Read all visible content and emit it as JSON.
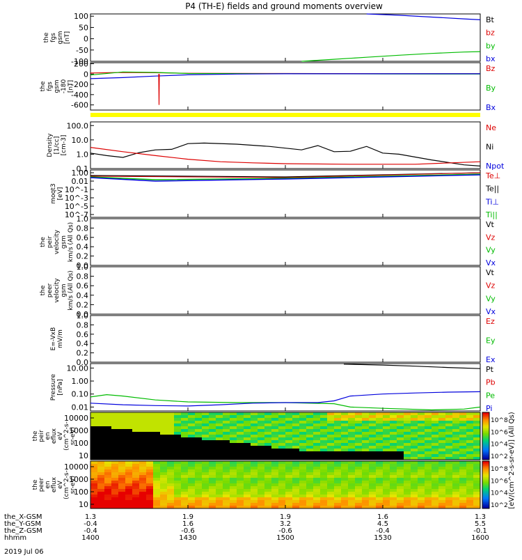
{
  "chart_data": {
    "type": "line",
    "title": "P4 (TH-E) fields and ground moments overview",
    "date": "2019 Jul 06",
    "time_ticks": [
      "1400",
      "1430",
      "1500",
      "1530",
      "1600"
    ],
    "time_minutes": [
      0,
      30,
      60,
      90,
      120
    ],
    "orbit_rows": [
      {
        "label": "the_X-GSM",
        "values": [
          "1.3",
          "1.9",
          "1.9",
          "1.6",
          "1.3"
        ]
      },
      {
        "label": "the_Y-GSM",
        "values": [
          "-0.4",
          "1.6",
          "3.2",
          "4.5",
          "5.5"
        ]
      },
      {
        "label": "the_Z-GSM",
        "values": [
          "-0.4",
          "-0.6",
          "-0.6",
          "-0.4",
          "-0.1"
        ]
      },
      {
        "label": "hhmm",
        "values": [
          "1400",
          "1430",
          "1500",
          "1530",
          "1600"
        ]
      }
    ],
    "panels": [
      {
        "key": "fgs",
        "ylabel": [
          "the",
          "fgs",
          "gsm",
          "[nT]"
        ],
        "yticks": [
          "100",
          "50",
          "0",
          "-50",
          "-100"
        ],
        "ytick_values": [
          100,
          50,
          0,
          -50,
          -100
        ],
        "ylim": [
          -100,
          110
        ],
        "scale": "linear",
        "legend": [
          {
            "name": "Bt",
            "color": "#000000"
          },
          {
            "name": "bz",
            "color": "#dd0000"
          },
          {
            "name": "by",
            "color": "#00bb00"
          },
          {
            "name": "bx",
            "color": "#0000dd"
          }
        ],
        "series": [
          {
            "name": "bx",
            "color": "#0000dd",
            "t": [
              85,
              95,
              105,
              115,
              120
            ],
            "v": [
              110,
              104,
              96,
              88,
              84
            ]
          },
          {
            "name": "by",
            "color": "#00bb00",
            "t": [
              65,
              75,
              85,
              95,
              105,
              115,
              120
            ],
            "v": [
              -100,
              -91,
              -82,
              -73,
              -65,
              -59,
              -57
            ]
          }
        ]
      },
      {
        "key": "fgs_dc",
        "ylabel": [
          "the",
          "fgs",
          "gsm",
          "-180",
          "[nT]"
        ],
        "yticks": [
          "200",
          "0",
          "-200",
          "-400",
          "-600"
        ],
        "ytick_values": [
          200,
          0,
          -200,
          -400,
          -600
        ],
        "ylim": [
          -700,
          220
        ],
        "scale": "linear",
        "legend": [
          {
            "name": "Bz",
            "color": "#dd0000"
          },
          {
            "name": "By",
            "color": "#00bb00"
          },
          {
            "name": "Bx",
            "color": "#0000dd"
          }
        ],
        "series": [
          {
            "name": "Bz",
            "color": "#dd0000",
            "t": [
              0,
              10,
              20,
              30,
              60,
              90,
              120
            ],
            "v": [
              20,
              30,
              25,
              15,
              10,
              5,
              5
            ]
          },
          {
            "name": "By",
            "color": "#00bb00",
            "t": [
              0,
              10,
              20,
              30,
              60,
              90,
              120
            ],
            "v": [
              -20,
              40,
              30,
              10,
              5,
              2,
              0
            ]
          },
          {
            "name": "Bx",
            "color": "#0000dd",
            "t": [
              0,
              10,
              20,
              30,
              45,
              60,
              120
            ],
            "v": [
              -90,
              -70,
              -40,
              -15,
              0,
              5,
              5
            ]
          },
          {
            "name": "spike",
            "color": "#dd0000",
            "t": [
              21,
              21.1,
              21.2
            ],
            "v": [
              0,
              -600,
              0
            ]
          }
        ]
      },
      {
        "key": "density",
        "ylabel": [
          "Density",
          "[1/cc]",
          "[cm-3]"
        ],
        "yticks": [
          "100.0",
          "10.0",
          "1.0",
          "0.1"
        ],
        "ytick_values": [
          100,
          10,
          1,
          0.1
        ],
        "ylim": [
          0.1,
          180
        ],
        "scale": "log",
        "legend": [
          {
            "name": "Ne",
            "color": "#dd0000"
          },
          {
            "name": "Ni",
            "color": "#000000"
          },
          {
            "name": "Npot",
            "color": "#0000dd"
          }
        ],
        "series": [
          {
            "name": "Ni",
            "color": "#000000",
            "t": [
              0,
              5,
              10,
              15,
              20,
              25,
              30,
              35,
              45,
              55,
              65,
              70,
              75,
              80,
              85,
              90,
              95,
              105,
              115,
              120
            ],
            "v": [
              1.2,
              0.8,
              0.6,
              1.3,
              2.0,
              2.2,
              5.5,
              6,
              5,
              3.5,
              2,
              4,
              1.5,
              1.6,
              3.5,
              1.2,
              1.0,
              0.4,
              0.18,
              0.15
            ]
          },
          {
            "name": "Ne",
            "color": "#dd0000",
            "t": [
              0,
              10,
              20,
              30,
              40,
              50,
              60,
              80,
              100,
              120
            ],
            "v": [
              3,
              1.5,
              0.8,
              0.45,
              0.3,
              0.25,
              0.22,
              0.2,
              0.2,
              0.3
            ]
          }
        ]
      },
      {
        "key": "temp",
        "ylabel": [
          "moqt3",
          "[eV]"
        ],
        "yticks": [
          "1.00",
          "0.01",
          "10^-1",
          "10^-3",
          "10^-5",
          "10^-7"
        ],
        "ytick_values": [],
        "ylim": [
          0,
          1
        ],
        "scale": "log",
        "legend": [
          {
            "name": "Te⊥",
            "color": "#dd0000"
          },
          {
            "name": "Te||",
            "color": "#000000"
          },
          {
            "name": "Ti⊥",
            "color": "#0000dd"
          },
          {
            "name": "Ti||",
            "color": "#00bb00"
          }
        ],
        "series": []
      },
      {
        "key": "peir_v",
        "ylabel": [
          "the",
          "peir",
          "velocity",
          "gsm",
          "km/s (All Qs)"
        ],
        "yticks": [
          "1.0",
          "0.8",
          "0.6",
          "0.4",
          "0.2",
          "0.0"
        ],
        "ytick_values": [
          1,
          0.8,
          0.6,
          0.4,
          0.2,
          0
        ],
        "ylim": [
          0,
          1
        ],
        "scale": "linear",
        "legend": [
          {
            "name": "Vt",
            "color": "#000000"
          },
          {
            "name": "Vz",
            "color": "#dd0000"
          },
          {
            "name": "Vy",
            "color": "#00bb00"
          },
          {
            "name": "Vx",
            "color": "#0000dd"
          }
        ],
        "series": []
      },
      {
        "key": "peer_v",
        "ylabel": [
          "the",
          "peer",
          "velocity",
          "gsm",
          "km/s (All Qs)"
        ],
        "yticks": [
          "1.0",
          "0.8",
          "0.6",
          "0.4",
          "0.2",
          "0.0"
        ],
        "ytick_values": [
          1,
          0.8,
          0.6,
          0.4,
          0.2,
          0
        ],
        "ylim": [
          0,
          1
        ],
        "scale": "linear",
        "legend": [
          {
            "name": "Vt",
            "color": "#000000"
          },
          {
            "name": "Vz",
            "color": "#dd0000"
          },
          {
            "name": "Vy",
            "color": "#00bb00"
          },
          {
            "name": "Vx",
            "color": "#0000dd"
          }
        ],
        "series": []
      },
      {
        "key": "efield",
        "ylabel": [
          "E=-VxB",
          "mV/m"
        ],
        "yticks": [
          "1.0",
          "0.8",
          "0.6",
          "0.4",
          "0.2",
          "0.0"
        ],
        "ytick_values": [
          1,
          0.8,
          0.6,
          0.4,
          0.2,
          0
        ],
        "ylim": [
          0,
          1
        ],
        "scale": "linear",
        "legend": [
          {
            "name": "Ez",
            "color": "#dd0000"
          },
          {
            "name": "Ey",
            "color": "#00bb00"
          },
          {
            "name": "Ex",
            "color": "#0000dd"
          }
        ],
        "series": []
      },
      {
        "key": "pressure",
        "ylabel": [
          "Pressure",
          "[nPa]"
        ],
        "yticks": [
          "10.00",
          "1.00",
          "0.10",
          "0.01"
        ],
        "ytick_values": [
          10,
          1,
          0.1,
          0.01
        ],
        "ylim": [
          0.005,
          22
        ],
        "scale": "log",
        "legend": [
          {
            "name": "Pt",
            "color": "#000000"
          },
          {
            "name": "Pb",
            "color": "#dd0000"
          },
          {
            "name": "Pe",
            "color": "#00bb00"
          },
          {
            "name": "Pi",
            "color": "#0000dd"
          }
        ],
        "series": [
          {
            "name": "Pt",
            "color": "#000000",
            "t": [
              78,
              90,
              100,
              110,
              120
            ],
            "v": [
              20,
              17,
              14,
              11,
              9
            ]
          },
          {
            "name": "Pe",
            "color": "#00bb00",
            "t": [
              0,
              5,
              10,
              20,
              30,
              45,
              60,
              75,
              80,
              90,
              105,
              115,
              120
            ],
            "v": [
              0.06,
              0.09,
              0.07,
              0.035,
              0.025,
              0.022,
              0.022,
              0.018,
              0.01,
              0.008,
              0.006,
              0.007,
              0.01
            ]
          },
          {
            "name": "Pi",
            "color": "#0000dd",
            "t": [
              0,
              10,
              20,
              30,
              40,
              50,
              60,
              70,
              75,
              80,
              90,
              100,
              110,
              120
            ],
            "v": [
              0.02,
              0.015,
              0.013,
              0.012,
              0.015,
              0.02,
              0.022,
              0.022,
              0.03,
              0.07,
              0.1,
              0.12,
              0.14,
              0.15
            ]
          }
        ]
      }
    ],
    "spectrograms": [
      {
        "key": "peir_en",
        "ylabel": [
          "the",
          "peir",
          "en",
          "eflux",
          "eV",
          "(cm^2-s-",
          "sr-eV)"
        ],
        "yticks": [
          "10000",
          "1000",
          "100",
          "10"
        ],
        "colorbar_ticks": [
          "10^8",
          "10^6",
          "10^4",
          "10^2"
        ]
      },
      {
        "key": "peer_en",
        "ylabel": [
          "the",
          "peer",
          "en",
          "eflux",
          "eV",
          "(cm^2-s-",
          "sr-eV)"
        ],
        "yticks": [
          "10000",
          "1000",
          "100",
          "10"
        ],
        "colorbar_ticks": [
          "10^8",
          "10^6",
          "10^4",
          "10^2"
        ]
      }
    ],
    "colorbar_label": "[eV/(cm^2-s-sr-eV)] (All Qs)"
  }
}
